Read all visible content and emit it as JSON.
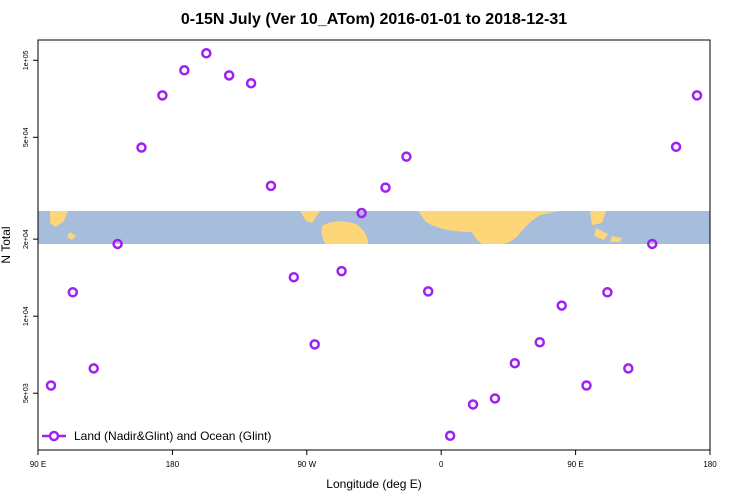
{
  "chart_data": {
    "type": "scatter",
    "title": "0-15N July (Ver 10_ATom)   2016-01-01 to 2018-12-31",
    "xlabel": "Longitude (deg E)",
    "ylabel": "N Total",
    "xlim": [
      90,
      540
    ],
    "xticks": [
      {
        "value": 90,
        "label": "90 E"
      },
      180,
      {
        "value": 270,
        "label": "90 W"
      },
      {
        "value": 360,
        "label": "0"
      },
      {
        "value": 450,
        "label": "90 E"
      },
      {
        "value": 540,
        "label": "180"
      }
    ],
    "ylim": [
      3000,
      120000
    ],
    "log_y": true,
    "yticks": [
      {
        "value": 5000,
        "label": "5e+03"
      },
      {
        "value": 10000,
        "label": "1e+04"
      },
      {
        "value": 20000,
        "label": "2e+04"
      },
      {
        "value": 50000,
        "label": "5e+04"
      },
      {
        "value": 100000,
        "label": "1e+05"
      }
    ],
    "legend": "bottom-left",
    "series": [
      {
        "name": "Land (Nadir&Glint) and Ocean (Glint)",
        "color": "#a020f0",
        "x": [
          98.7,
          113.3,
          127.3,
          143.3,
          159.3,
          173.3,
          188,
          202.7,
          218,
          232.7,
          246,
          261.3,
          275.3,
          293.3,
          306.7,
          322.7,
          336.7,
          351.3,
          366,
          381.3,
          396,
          409.3,
          426,
          440.7,
          457.3,
          471.3,
          485.3,
          501.3,
          517.3,
          531.3
        ],
        "values": [
          5360,
          12400,
          6250,
          19150,
          45600,
          72900,
          91400,
          106500,
          87300,
          81300,
          32300,
          14200,
          7760,
          15000,
          25300,
          31800,
          42000,
          12500,
          3410,
          4520,
          4770,
          6550,
          7910,
          11000,
          5360,
          12400,
          6250,
          19150,
          45900,
          72900
        ]
      }
    ]
  }
}
